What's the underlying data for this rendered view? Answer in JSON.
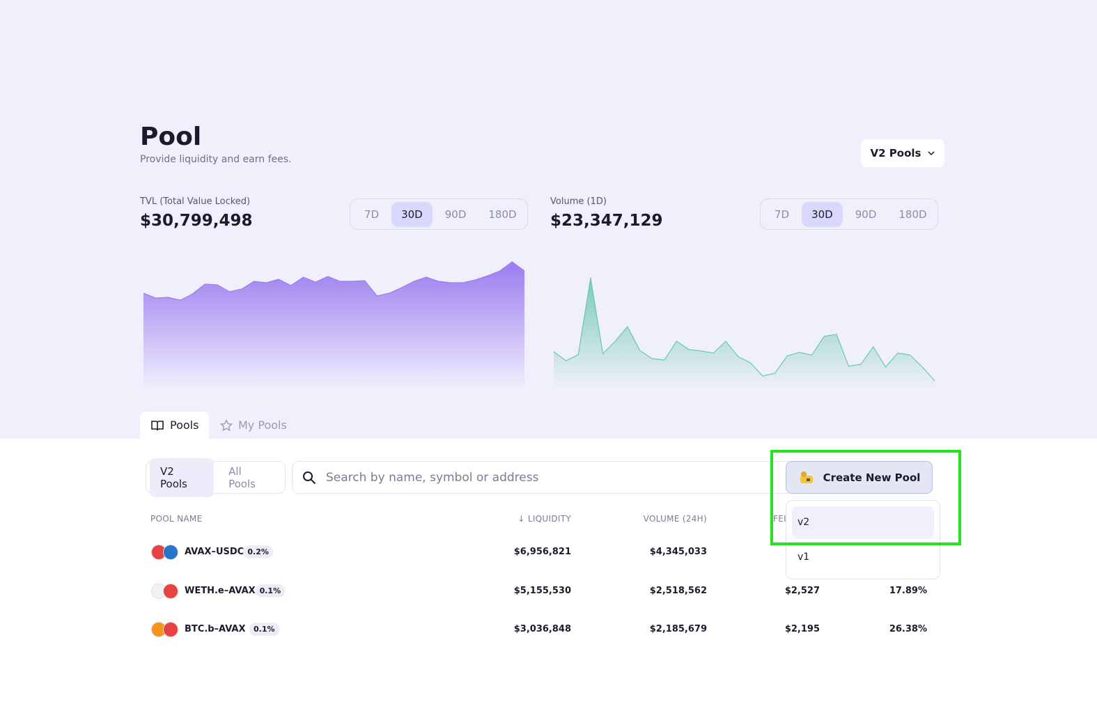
{
  "header": {
    "title": "Pool",
    "subtitle": "Provide liquidity and earn fees.",
    "version_selector": "V2 Pools"
  },
  "stats": [
    {
      "label": "TVL (Total Value Locked)",
      "value": "$30,799,498",
      "ranges": [
        "7D",
        "30D",
        "90D",
        "180D"
      ],
      "active_range": "30D",
      "chart": {
        "type": "area",
        "color": "#9b7bf0",
        "values": [
          139,
          132,
          133,
          129,
          138,
          152,
          151,
          141,
          145,
          156,
          154,
          159,
          150,
          162,
          155,
          163,
          156,
          156,
          157,
          135,
          139,
          147,
          156,
          162,
          156,
          154,
          154,
          158,
          164,
          171,
          184,
          171
        ]
      }
    },
    {
      "label": "Volume (1D)",
      "value": "$23,347,129",
      "ranges": [
        "7D",
        "30D",
        "90D",
        "180D"
      ],
      "active_range": "30D",
      "chart": {
        "type": "area",
        "color": "#6cc7b0",
        "values": [
          55,
          42,
          51,
          161,
          52,
          70,
          91,
          57,
          45,
          43,
          70,
          58,
          56,
          53,
          70,
          48,
          39,
          20,
          24,
          49,
          54,
          50,
          77,
          80,
          34,
          37,
          62,
          33,
          53,
          50,
          33,
          13
        ]
      }
    }
  ],
  "tabs": [
    "Pools",
    "My Pools"
  ],
  "filters": [
    "V2 Pools",
    "All Pools"
  ],
  "search_placeholder": "Search by name, symbol or address",
  "create_button": "Create New Pool",
  "create_menu": [
    "v2",
    "v1"
  ],
  "table": {
    "columns": [
      "POOL NAME",
      "LIQUIDITY",
      "VOLUME (24H)",
      "FEI"
    ],
    "rows": [
      {
        "name": "AVAX–USDC",
        "fee": "0.2%",
        "liquidity": "$6,956,821",
        "volume": "$4,345,033",
        "icon_colors": [
          "#e84142",
          "#2775ca"
        ]
      },
      {
        "name": "WETH.e–AVAX",
        "fee": "0.1%",
        "liquidity": "$5,155,530",
        "volume": "$2,518,562",
        "fees": "$2,527",
        "apr": "17.89%",
        "icon_colors": [
          "#f2f2f2",
          "#e84142"
        ]
      },
      {
        "name": "BTC.b–AVAX",
        "fee": "0.1%",
        "liquidity": "$3,036,848",
        "volume": "$2,185,679",
        "fees": "$2,195",
        "apr": "26.38%",
        "icon_colors": [
          "#f7931a",
          "#e84142"
        ]
      }
    ]
  }
}
